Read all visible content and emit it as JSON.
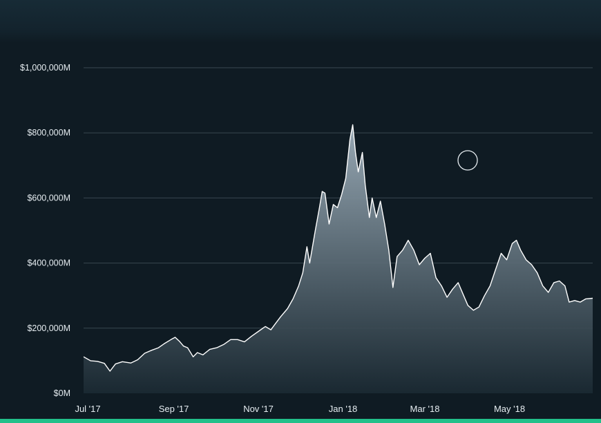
{
  "colors": {
    "background": "#0f1b23",
    "line": "#ffffff",
    "area_top": "#9fb0bc",
    "area_bottom": "#1b2a33",
    "grid": "#5b6b75",
    "accent_bar": "#22c08a"
  },
  "chart_data": {
    "type": "area",
    "title": "",
    "xlabel": "",
    "ylabel": "",
    "unit": "USD (millions)",
    "ylim": [
      0,
      1000000
    ],
    "y_ticks": [
      {
        "value": 0,
        "label": "$0M"
      },
      {
        "value": 200000,
        "label": "$200,000M"
      },
      {
        "value": 400000,
        "label": "$400,000M"
      },
      {
        "value": 600000,
        "label": "$600,000M"
      },
      {
        "value": 800000,
        "label": "$800,000M"
      },
      {
        "value": 1000000,
        "label": "$1,000,000M"
      }
    ],
    "x_range": [
      "2017-06-28",
      "2018-06-30"
    ],
    "x_ticks": [
      {
        "date": "2017-07-01",
        "label": "Jul '17"
      },
      {
        "date": "2017-09-01",
        "label": "Sep '17"
      },
      {
        "date": "2017-11-01",
        "label": "Nov '17"
      },
      {
        "date": "2018-01-01",
        "label": "Jan '18"
      },
      {
        "date": "2018-03-01",
        "label": "Mar '18"
      },
      {
        "date": "2018-05-01",
        "label": "May '18"
      }
    ],
    "grid": true,
    "legend": "none",
    "series": [
      {
        "points": [
          [
            "2017-06-28",
            112000
          ],
          [
            "2017-07-03",
            100000
          ],
          [
            "2017-07-08",
            98000
          ],
          [
            "2017-07-13",
            92000
          ],
          [
            "2017-07-17",
            68000
          ],
          [
            "2017-07-21",
            90000
          ],
          [
            "2017-07-26",
            97000
          ],
          [
            "2017-08-01",
            93000
          ],
          [
            "2017-08-06",
            103000
          ],
          [
            "2017-08-11",
            123000
          ],
          [
            "2017-08-16",
            132000
          ],
          [
            "2017-08-21",
            140000
          ],
          [
            "2017-08-25",
            152000
          ],
          [
            "2017-08-30",
            165000
          ],
          [
            "2017-09-02",
            172000
          ],
          [
            "2017-09-05",
            160000
          ],
          [
            "2017-09-08",
            145000
          ],
          [
            "2017-09-11",
            140000
          ],
          [
            "2017-09-15",
            112000
          ],
          [
            "2017-09-18",
            125000
          ],
          [
            "2017-09-22",
            118000
          ],
          [
            "2017-09-27",
            135000
          ],
          [
            "2017-10-02",
            140000
          ],
          [
            "2017-10-07",
            150000
          ],
          [
            "2017-10-12",
            165000
          ],
          [
            "2017-10-17",
            165000
          ],
          [
            "2017-10-22",
            158000
          ],
          [
            "2017-10-27",
            175000
          ],
          [
            "2017-11-01",
            190000
          ],
          [
            "2017-11-06",
            205000
          ],
          [
            "2017-11-10",
            195000
          ],
          [
            "2017-11-13",
            212000
          ],
          [
            "2017-11-17",
            235000
          ],
          [
            "2017-11-22",
            260000
          ],
          [
            "2017-11-26",
            290000
          ],
          [
            "2017-11-30",
            330000
          ],
          [
            "2017-12-03",
            370000
          ],
          [
            "2017-12-06",
            450000
          ],
          [
            "2017-12-08",
            400000
          ],
          [
            "2017-12-12",
            500000
          ],
          [
            "2017-12-15",
            570000
          ],
          [
            "2017-12-17",
            620000
          ],
          [
            "2017-12-19",
            615000
          ],
          [
            "2017-12-22",
            520000
          ],
          [
            "2017-12-25",
            580000
          ],
          [
            "2017-12-28",
            570000
          ],
          [
            "2017-12-31",
            610000
          ],
          [
            "2018-01-03",
            660000
          ],
          [
            "2018-01-06",
            780000
          ],
          [
            "2018-01-08",
            825000
          ],
          [
            "2018-01-10",
            740000
          ],
          [
            "2018-01-12",
            680000
          ],
          [
            "2018-01-15",
            740000
          ],
          [
            "2018-01-17",
            640000
          ],
          [
            "2018-01-20",
            540000
          ],
          [
            "2018-01-22",
            600000
          ],
          [
            "2018-01-25",
            540000
          ],
          [
            "2018-01-28",
            590000
          ],
          [
            "2018-01-31",
            520000
          ],
          [
            "2018-02-03",
            440000
          ],
          [
            "2018-02-06",
            325000
          ],
          [
            "2018-02-09",
            420000
          ],
          [
            "2018-02-13",
            440000
          ],
          [
            "2018-02-17",
            470000
          ],
          [
            "2018-02-21",
            440000
          ],
          [
            "2018-02-25",
            395000
          ],
          [
            "2018-03-01",
            415000
          ],
          [
            "2018-03-05",
            430000
          ],
          [
            "2018-03-09",
            355000
          ],
          [
            "2018-03-13",
            330000
          ],
          [
            "2018-03-17",
            295000
          ],
          [
            "2018-03-21",
            320000
          ],
          [
            "2018-03-25",
            340000
          ],
          [
            "2018-03-29",
            300000
          ],
          [
            "2018-04-01",
            270000
          ],
          [
            "2018-04-05",
            255000
          ],
          [
            "2018-04-09",
            265000
          ],
          [
            "2018-04-13",
            300000
          ],
          [
            "2018-04-17",
            330000
          ],
          [
            "2018-04-21",
            380000
          ],
          [
            "2018-04-25",
            430000
          ],
          [
            "2018-04-29",
            410000
          ],
          [
            "2018-05-03",
            460000
          ],
          [
            "2018-05-06",
            470000
          ],
          [
            "2018-05-09",
            440000
          ],
          [
            "2018-05-13",
            410000
          ],
          [
            "2018-05-17",
            395000
          ],
          [
            "2018-05-21",
            370000
          ],
          [
            "2018-05-25",
            330000
          ],
          [
            "2018-05-29",
            310000
          ],
          [
            "2018-06-02",
            340000
          ],
          [
            "2018-06-06",
            345000
          ],
          [
            "2018-06-10",
            330000
          ],
          [
            "2018-06-13",
            280000
          ],
          [
            "2018-06-17",
            285000
          ],
          [
            "2018-06-21",
            280000
          ],
          [
            "2018-06-25",
            290000
          ],
          [
            "2018-06-30",
            292000
          ]
        ]
      }
    ]
  }
}
